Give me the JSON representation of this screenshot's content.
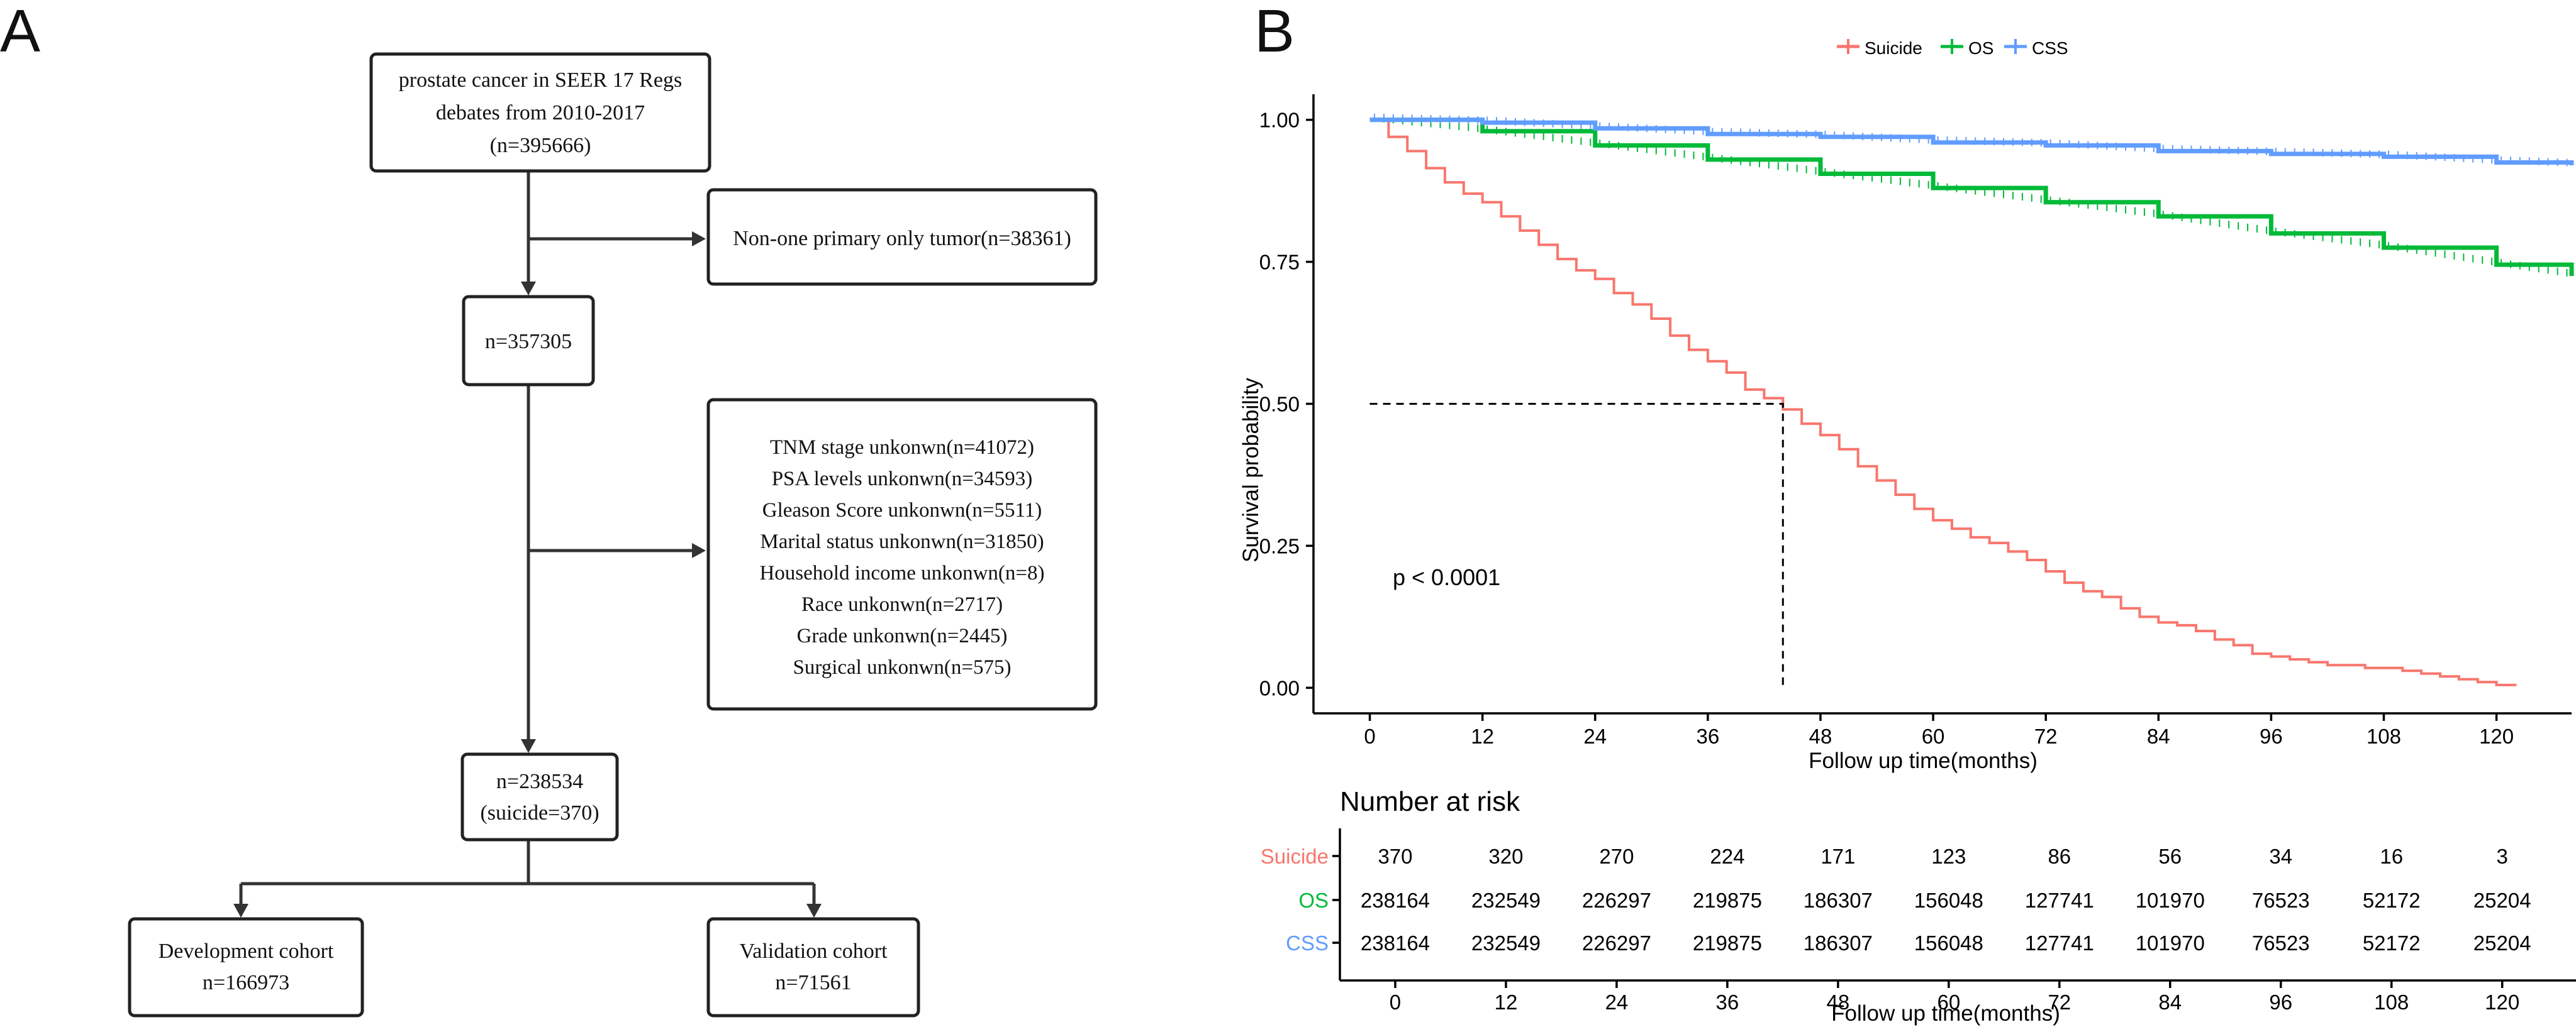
{
  "panel_a": {
    "label": "A",
    "boxes": {
      "source": [
        "prostate cancer in SEER 17 Regs",
        "debates from 2010-2017",
        "(n=395666)"
      ],
      "exclude1": [
        "Non-one primary only tumor(n=38361)"
      ],
      "mid": [
        "n=357305"
      ],
      "exclude2": [
        "TNM stage unkonwn(n=41072)",
        "PSA levels unkonwn(n=34593)",
        "Gleason Score unkonwn(n=5511)",
        "Marital status unkonwn(n=31850)",
        "Household income unkonwn(n=8)",
        "Race unkonwn(n=2717)",
        "Grade unkonwn(n=2445)",
        "Surgical unkonwn(n=575)"
      ],
      "final": [
        "n=238534",
        "(suicide=370)"
      ],
      "dev": [
        "Development cohort",
        "n=166973"
      ],
      "val": [
        "Validation cohort",
        "n=71561"
      ]
    }
  },
  "panel_b": {
    "label": "B"
  },
  "chart_data": {
    "type": "line",
    "subtype": "kaplan-meier step",
    "ylabel": "Survival probability",
    "xlabel": "Follow up time(months)",
    "xlim": [
      -6,
      128
    ],
    "ylim": [
      -0.045,
      1.045
    ],
    "xticks": [
      0,
      12,
      24,
      36,
      48,
      60,
      72,
      84,
      96,
      108,
      120
    ],
    "yticks": [
      0,
      0.25,
      0.5,
      0.75,
      1.0
    ],
    "ytick_labels": [
      "0.00",
      "0.25",
      "0.50",
      "0.75",
      "1.00"
    ],
    "annotation": "p < 0.0001",
    "median_survival": {
      "x": 44,
      "y": 0.5,
      "series": "Suicide"
    },
    "legend": {
      "placement": "top-center",
      "entries": [
        "Suicide",
        "OS",
        "CSS"
      ]
    },
    "series": [
      {
        "name": "Suicide",
        "color": "#F8766D",
        "x": [
          0,
          2,
          4,
          6,
          8,
          10,
          12,
          14,
          16,
          18,
          20,
          22,
          24,
          26,
          28,
          30,
          32,
          34,
          36,
          38,
          40,
          42,
          44,
          46,
          48,
          50,
          52,
          54,
          56,
          58,
          60,
          62,
          64,
          66,
          68,
          70,
          72,
          74,
          76,
          78,
          80,
          82,
          84,
          86,
          88,
          90,
          92,
          94,
          96,
          98,
          100,
          102,
          104,
          106,
          108,
          110,
          112,
          114,
          116,
          118,
          120,
          122
        ],
        "values": [
          1.0,
          0.97,
          0.945,
          0.915,
          0.89,
          0.87,
          0.855,
          0.83,
          0.805,
          0.78,
          0.755,
          0.735,
          0.72,
          0.695,
          0.675,
          0.65,
          0.62,
          0.595,
          0.575,
          0.555,
          0.525,
          0.51,
          0.49,
          0.465,
          0.445,
          0.42,
          0.39,
          0.365,
          0.34,
          0.315,
          0.295,
          0.28,
          0.265,
          0.255,
          0.24,
          0.225,
          0.205,
          0.185,
          0.17,
          0.16,
          0.14,
          0.125,
          0.115,
          0.11,
          0.1,
          0.085,
          0.075,
          0.06,
          0.055,
          0.05,
          0.045,
          0.04,
          0.04,
          0.035,
          0.035,
          0.03,
          0.025,
          0.02,
          0.015,
          0.01,
          0.005,
          0.003
        ]
      },
      {
        "name": "OS",
        "color": "#00BA38",
        "x": [
          0,
          12,
          24,
          36,
          48,
          60,
          72,
          84,
          96,
          108,
          120,
          128
        ],
        "values": [
          1.0,
          0.98,
          0.955,
          0.93,
          0.905,
          0.88,
          0.855,
          0.83,
          0.8,
          0.775,
          0.745,
          0.725
        ]
      },
      {
        "name": "CSS",
        "color": "#619CFF",
        "x": [
          0,
          12,
          24,
          36,
          48,
          60,
          72,
          84,
          96,
          108,
          120,
          128
        ],
        "values": [
          1.0,
          0.995,
          0.985,
          0.975,
          0.97,
          0.96,
          0.955,
          0.945,
          0.94,
          0.935,
          0.925,
          0.92
        ]
      }
    ],
    "risk_table": {
      "title": "Number at risk",
      "xlabel": "Follow up time(months)",
      "times": [
        0,
        12,
        24,
        36,
        48,
        60,
        72,
        84,
        96,
        108,
        120
      ],
      "rows": [
        {
          "name": "Suicide",
          "color": "#F8766D",
          "counts": [
            "370",
            "320",
            "270",
            "224",
            "171",
            "123",
            "86",
            "56",
            "34",
            "16",
            "3"
          ]
        },
        {
          "name": "OS",
          "color": "#00BA38",
          "counts": [
            "238164",
            "232549",
            "226297",
            "219875",
            "186307",
            "156048",
            "127741",
            "101970",
            "76523",
            "52172",
            "25204"
          ]
        },
        {
          "name": "CSS",
          "color": "#619CFF",
          "counts": [
            "238164",
            "232549",
            "226297",
            "219875",
            "186307",
            "156048",
            "127741",
            "101970",
            "76523",
            "52172",
            "25204"
          ]
        }
      ]
    }
  }
}
